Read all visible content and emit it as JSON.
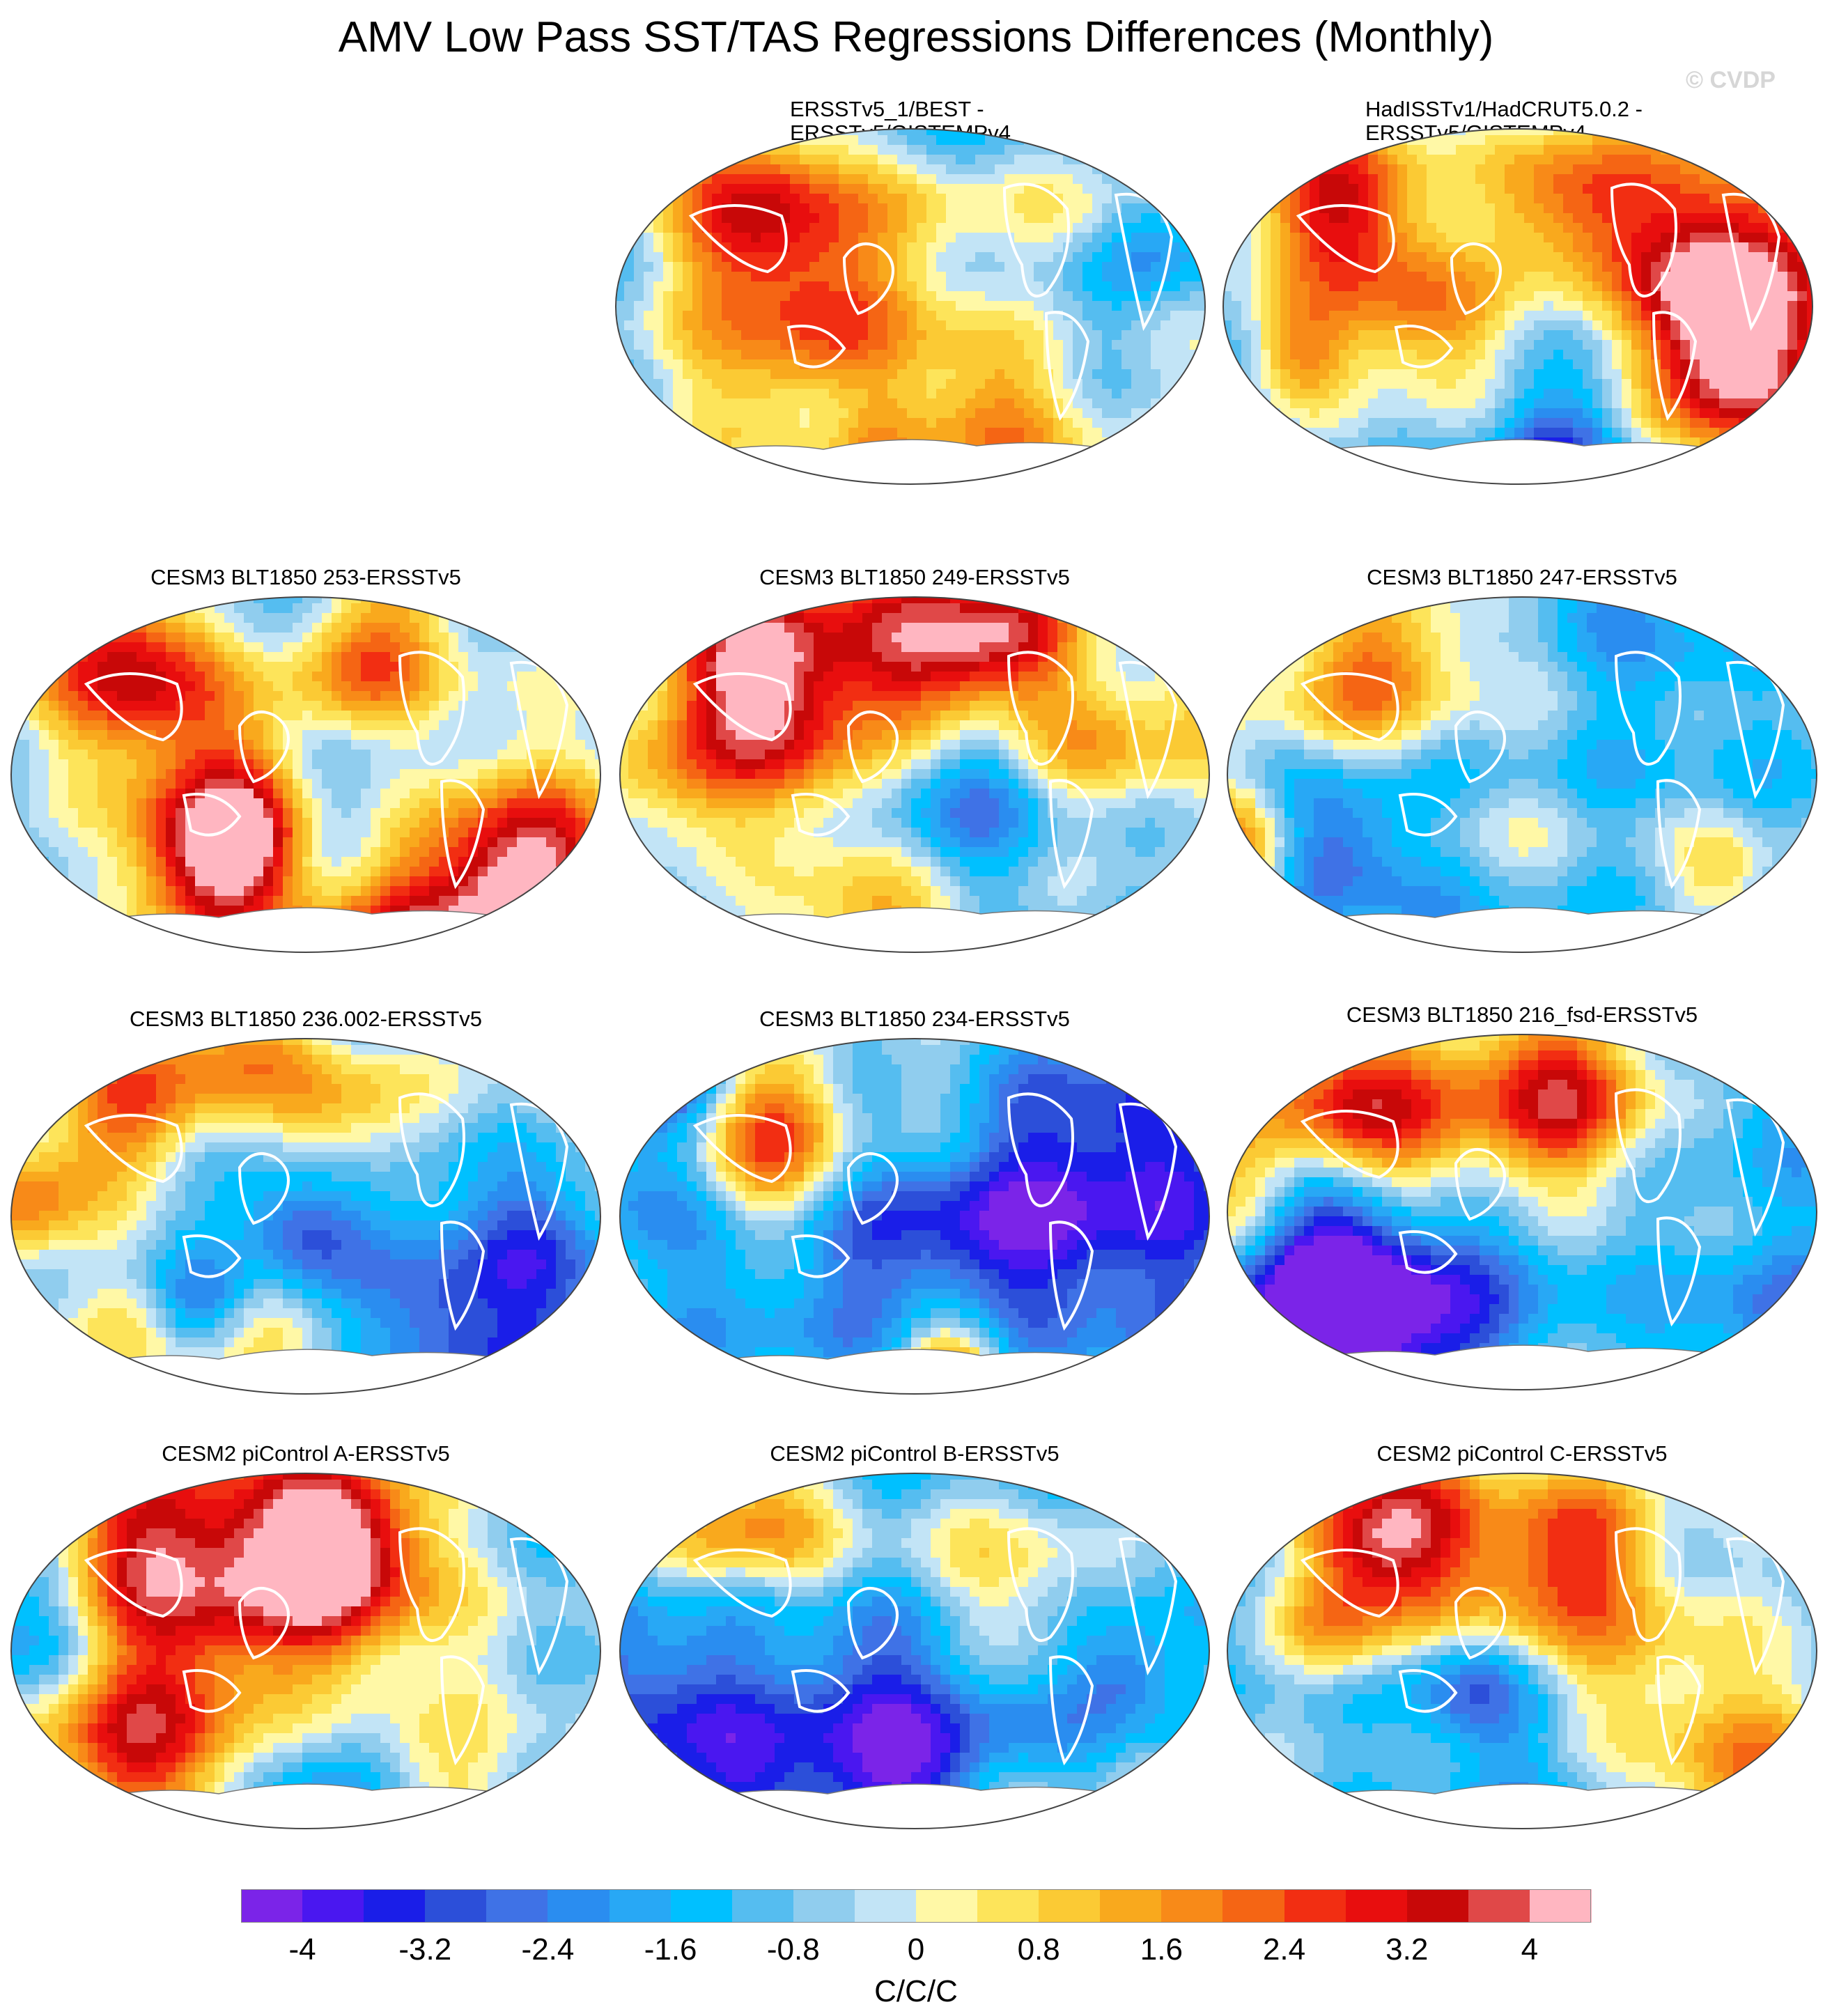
{
  "title": "AMV Low Pass SST/TAS Regressions Differences (Monthly)",
  "watermark": "© CVDP",
  "colorbar": {
    "colors": [
      "#7b24e8",
      "#4a17f0",
      "#1a1ee8",
      "#2c4fd9",
      "#3f72e6",
      "#2a8df0",
      "#28a8f5",
      "#00c0ff",
      "#55bdf0",
      "#90cdee",
      "#c2e4f6",
      "#fff8a6",
      "#fde45a",
      "#fbca34",
      "#f9a91d",
      "#f88a18",
      "#f56514",
      "#f22e12",
      "#e80e0e",
      "#c80808",
      "#e04848",
      "#ffb6c1"
    ],
    "labels": [
      "-4",
      "-3.2",
      "-2.4",
      "-1.6",
      "-0.8",
      "0",
      "0.8",
      "1.6",
      "2.4",
      "3.2",
      "4"
    ],
    "units": "C/C/C"
  },
  "panels": [
    {
      "title": "ERSSTv5_1/BEST -",
      "title2": "ERSSTv5/GISTEMPv4",
      "seed": 11
    },
    {
      "title": "HadISSTv1/HadCRUT5.0.2 -",
      "title2": "ERSSTv5/GISTEMPv4",
      "seed": 23
    },
    {
      "title": "CESM3 BLT1850 253-ERSSTv5",
      "seed": 37
    },
    {
      "title": "CESM3 BLT1850 249-ERSSTv5",
      "seed": 41
    },
    {
      "title": "CESM3 BLT1850 247-ERSSTv5",
      "seed": 53
    },
    {
      "title": "CESM3 BLT1850 236.002-ERSSTv5",
      "seed": 67
    },
    {
      "title": "CESM3 BLT1850 234-ERSSTv5",
      "seed": 71
    },
    {
      "title": "CESM3 BLT1850 216_fsd-ERSSTv5",
      "seed": 83
    },
    {
      "title": "CESM2 piControl A-ERSSTv5",
      "seed": 97
    },
    {
      "title": "CESM2 piControl B-ERSSTv5",
      "seed": 101
    },
    {
      "title": "CESM2 piControl C-ERSSTv5",
      "seed": 113
    }
  ]
}
